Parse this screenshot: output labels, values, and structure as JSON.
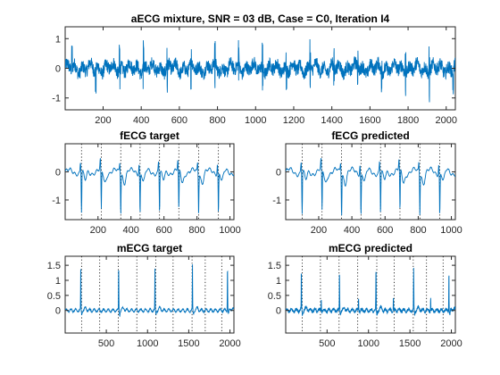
{
  "figure": {
    "background": "#ffffff",
    "line_color": "#0072bd",
    "axis_color": "#262626"
  },
  "chart_data": [
    {
      "type": "line",
      "title": "aECG mixture, SNR = 03 dB, Case = C0, Iteration I4",
      "xlim": [
        1,
        2048
      ],
      "ylim": [
        -1.4,
        1.4
      ],
      "xticks": [
        200,
        400,
        600,
        800,
        1000,
        1200,
        1400,
        1600,
        1800,
        2000
      ],
      "yticks": [
        -1,
        0,
        1
      ],
      "series": [
        {
          "noise_amp": 0.22,
          "beat_period": 125,
          "beat_offset": 35,
          "beat_amp": 0.85
        }
      ]
    },
    {
      "type": "line",
      "title": "fECG target",
      "xlim": [
        1,
        1024
      ],
      "ylim": [
        -1.7,
        1.0
      ],
      "xticks": [
        200,
        400,
        600,
        800,
        1000
      ],
      "yticks": [
        -1,
        0
      ],
      "markers": [
        100,
        220,
        338,
        455,
        573,
        690,
        810,
        930
      ],
      "series": [
        {
          "r_times": [
            100,
            220,
            338,
            455,
            573,
            690,
            810,
            930
          ],
          "r_amp": -1.45,
          "wave": 0.1
        }
      ]
    },
    {
      "type": "line",
      "title": "fECG predicted",
      "xlim": [
        1,
        1024
      ],
      "ylim": [
        -1.7,
        1.0
      ],
      "xticks": [
        200,
        400,
        600,
        800,
        1000
      ],
      "yticks": [
        -1,
        0
      ],
      "markers": [
        100,
        220,
        338,
        455,
        573,
        690,
        810,
        930
      ],
      "series": [
        {
          "r_times": [
            100,
            220,
            338,
            455,
            573,
            690,
            810,
            930
          ],
          "r_amp": -1.5,
          "wave": 0.12
        }
      ]
    },
    {
      "type": "line",
      "title": "mECG target",
      "xlim": [
        1,
        2048
      ],
      "ylim": [
        -0.75,
        1.8
      ],
      "xticks": [
        500,
        1000,
        1500,
        2000
      ],
      "yticks": [
        0,
        0.5,
        1,
        1.5
      ],
      "markers": [
        200,
        420,
        645,
        870,
        1100,
        1310,
        1540,
        1700,
        1900
      ],
      "series": [
        {
          "r_times": [
            190,
            650,
            1090,
            1545,
            1970
          ],
          "r_amp": 1.5,
          "noise": 0.02
        }
      ]
    },
    {
      "type": "line",
      "title": "mECG predicted",
      "xlim": [
        1,
        2048
      ],
      "ylim": [
        -0.75,
        1.8
      ],
      "xticks": [
        500,
        1000,
        1500,
        2000
      ],
      "yticks": [
        0,
        0.5,
        1,
        1.5
      ],
      "markers": [
        200,
        420,
        645,
        870,
        1100,
        1310,
        1540,
        1700,
        1900
      ],
      "series": [
        {
          "r_times": [
            190,
            650,
            1090,
            1545,
            1970
          ],
          "r_amp": 1.35,
          "noise": 0.05
        }
      ]
    }
  ]
}
